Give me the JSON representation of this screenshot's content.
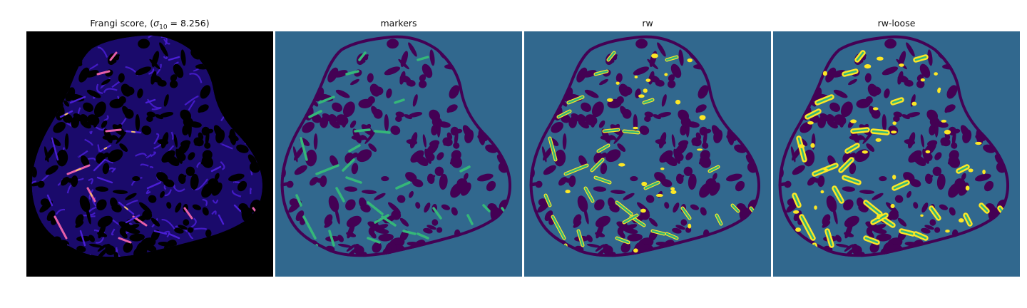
{
  "figure": {
    "panels": [
      {
        "title_prefix": "Frangi score, (",
        "title_symbol": "σ",
        "title_subscript": "10",
        "title_suffix": " = 8.256)",
        "kind": "frangi"
      },
      {
        "title": "markers",
        "kind": "markers"
      },
      {
        "title": "rw",
        "kind": "rw"
      },
      {
        "title": "rw-loose",
        "kind": "rw-loose"
      }
    ]
  },
  "colors": {
    "background_dark": "#000000",
    "frangi_tissue": "#1a0a6b",
    "frangi_vessel_mid": "#4b1fd6",
    "frangi_vessel_hot": "#e65fa8",
    "frangi_vessel_peak": "#f7c36b",
    "label_background": "#31688e",
    "label_tissue": "#440154",
    "label_marker": "#35b779",
    "label_vessel": "#fde725"
  }
}
